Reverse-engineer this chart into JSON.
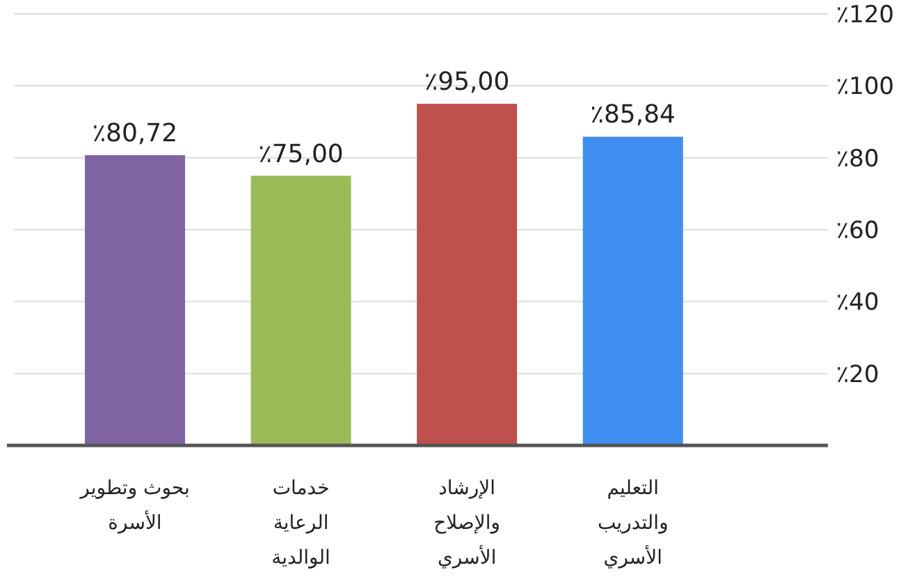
{
  "chart_data": {
    "type": "bar",
    "categories": [
      "بحوث وتطوير الأسرة",
      "خدمات الرعاية الوالدية",
      "الإرشاد والإصلاح الأسري",
      "التعليم والتدريب الأسري"
    ],
    "values": [
      80.72,
      75,
      95,
      85.84
    ],
    "colors": [
      "#8064a2",
      "#9bbb59",
      "#c0504d",
      "#3f8ef0"
    ],
    "value_labels": [
      "٪80,72",
      "٪75,00",
      "٪95,00",
      "٪85,84"
    ],
    "ylim": [
      0,
      120
    ],
    "yticks": [
      {
        "value": 20,
        "label": "٪20"
      },
      {
        "value": 40,
        "label": "٪40"
      },
      {
        "value": 60,
        "label": "٪60"
      },
      {
        "value": 80,
        "label": "٪80"
      },
      {
        "value": 100,
        "label": "٪100"
      },
      {
        "value": 120,
        "label": "٪120"
      }
    ],
    "grid": "y"
  }
}
